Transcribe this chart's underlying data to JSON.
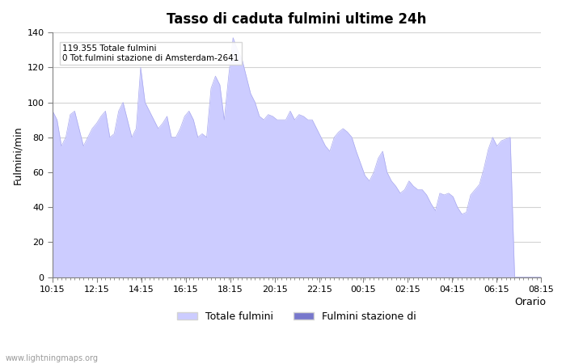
{
  "title": "Tasso di caduta fulmini ultime 24h",
  "xlabel": "Orario",
  "ylabel": "Fulmini/min",
  "ylim": [
    0,
    140
  ],
  "yticks": [
    0,
    20,
    40,
    60,
    80,
    100,
    120,
    140
  ],
  "xtick_labels": [
    "10:15",
    "12:15",
    "14:15",
    "16:15",
    "18:15",
    "20:15",
    "22:15",
    "00:15",
    "02:15",
    "04:15",
    "06:15",
    "08:15"
  ],
  "annotation_line1": "119.355 Totale fulmini",
  "annotation_line2": "0 Tot.fulmini stazione di Amsterdam-2641",
  "fill_color": "#ccccff",
  "fill_color2": "#7777cc",
  "line_color": "#aaaaee",
  "bg_color": "#ffffff",
  "watermark": "www.lightningmaps.org",
  "legend_label1": "Totale fulmini",
  "legend_label2": "Fulmini stazione di",
  "x_values": [
    0,
    1,
    2,
    3,
    4,
    5,
    6,
    7,
    8,
    9,
    10,
    11,
    12,
    13,
    14,
    15,
    16,
    17,
    18,
    19,
    20,
    21,
    22,
    23,
    24,
    25,
    26,
    27,
    28,
    29,
    30,
    31,
    32,
    33,
    34,
    35,
    36,
    37,
    38,
    39,
    40,
    41,
    42,
    43,
    44,
    45,
    46,
    47,
    48,
    49,
    50,
    51,
    52,
    53,
    54,
    55,
    56,
    57,
    58,
    59,
    60,
    61,
    62,
    63,
    64,
    65,
    66,
    67,
    68,
    69,
    70,
    71,
    72,
    73,
    74,
    75,
    76,
    77,
    78,
    79,
    80,
    81,
    82,
    83,
    84,
    85,
    86,
    87,
    88,
    89,
    90,
    91,
    92,
    93,
    94,
    95,
    96,
    97,
    98,
    99,
    100,
    101,
    102,
    103,
    104,
    105,
    106,
    107,
    108,
    109,
    110,
    111
  ],
  "y_values": [
    95,
    90,
    75,
    80,
    93,
    95,
    85,
    75,
    80,
    85,
    88,
    92,
    95,
    80,
    82,
    95,
    100,
    90,
    80,
    85,
    120,
    100,
    95,
    90,
    85,
    88,
    92,
    80,
    80,
    85,
    92,
    95,
    90,
    80,
    82,
    80,
    108,
    115,
    110,
    90,
    115,
    137,
    130,
    125,
    115,
    105,
    100,
    92,
    90,
    93,
    92,
    90,
    90,
    90,
    95,
    90,
    93,
    92,
    90,
    90,
    85,
    80,
    75,
    72,
    80,
    83,
    85,
    83,
    80,
    72,
    65,
    58,
    55,
    60,
    68,
    72,
    60,
    55,
    52,
    48,
    50,
    55,
    52,
    50,
    50,
    47,
    42,
    38,
    48,
    47,
    48,
    46,
    40,
    36,
    37,
    47,
    50,
    53,
    62,
    73,
    80,
    75,
    78,
    79,
    80,
    0,
    0,
    0,
    0,
    0,
    0,
    0
  ]
}
